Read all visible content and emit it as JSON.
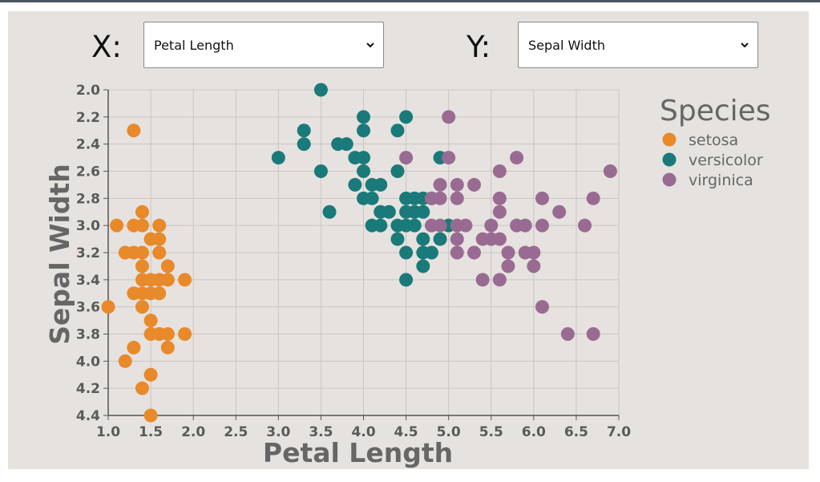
{
  "controls": {
    "x_label": "X:",
    "x_selected": "Petal Length",
    "y_label": "Y:",
    "y_selected": "Sepal Width"
  },
  "colors": {
    "setosa": "#e8892a",
    "versicolor": "#1a7a7a",
    "virginica": "#9a6b92",
    "grid": "#c9c6c3",
    "frame": "#a8a5a2",
    "text": "#666666"
  },
  "chart_data": {
    "type": "scatter",
    "title": "",
    "xlabel": "Petal Length",
    "ylabel": "Sepal Width",
    "xlim": [
      1.0,
      7.0
    ],
    "ylim": [
      2.0,
      4.4
    ],
    "y_inverted": true,
    "x_ticks": [
      "1.0",
      "1.5",
      "2.0",
      "2.5",
      "3.0",
      "3.5",
      "4.0",
      "4.5",
      "5.0",
      "5.5",
      "6.0",
      "6.5",
      "7.0"
    ],
    "y_ticks": [
      "2.0",
      "2.2",
      "2.4",
      "2.6",
      "2.8",
      "3.0",
      "3.2",
      "3.4",
      "3.6",
      "3.8",
      "4.0",
      "4.2",
      "4.4"
    ],
    "grid": true,
    "legend": {
      "title": "Species",
      "position": "right"
    },
    "series": [
      {
        "name": "setosa",
        "points": [
          [
            1.3,
            2.3
          ],
          [
            1.1,
            3.0
          ],
          [
            1.3,
            3.0
          ],
          [
            1.4,
            3.0
          ],
          [
            1.6,
            3.0
          ],
          [
            1.4,
            2.9
          ],
          [
            1.2,
            3.2
          ],
          [
            1.3,
            3.2
          ],
          [
            1.4,
            3.2
          ],
          [
            1.6,
            3.2
          ],
          [
            1.5,
            3.1
          ],
          [
            1.6,
            3.1
          ],
          [
            1.4,
            3.3
          ],
          [
            1.7,
            3.3
          ],
          [
            1.4,
            3.4
          ],
          [
            1.5,
            3.4
          ],
          [
            1.6,
            3.4
          ],
          [
            1.7,
            3.4
          ],
          [
            1.9,
            3.4
          ],
          [
            1.3,
            3.5
          ],
          [
            1.4,
            3.5
          ],
          [
            1.5,
            3.5
          ],
          [
            1.6,
            3.5
          ],
          [
            1.0,
            3.6
          ],
          [
            1.4,
            3.6
          ],
          [
            1.5,
            3.7
          ],
          [
            1.5,
            3.8
          ],
          [
            1.6,
            3.8
          ],
          [
            1.7,
            3.8
          ],
          [
            1.9,
            3.8
          ],
          [
            1.3,
            3.9
          ],
          [
            1.7,
            3.9
          ],
          [
            1.2,
            4.0
          ],
          [
            1.5,
            4.1
          ],
          [
            1.4,
            4.2
          ],
          [
            1.5,
            4.4
          ]
        ]
      },
      {
        "name": "versicolor",
        "points": [
          [
            3.5,
            2.0
          ],
          [
            4.0,
            2.2
          ],
          [
            4.5,
            2.2
          ],
          [
            3.3,
            2.3
          ],
          [
            4.0,
            2.3
          ],
          [
            4.4,
            2.3
          ],
          [
            3.3,
            2.4
          ],
          [
            3.7,
            2.4
          ],
          [
            3.8,
            2.4
          ],
          [
            3.0,
            2.5
          ],
          [
            3.9,
            2.5
          ],
          [
            4.0,
            2.5
          ],
          [
            4.9,
            2.5
          ],
          [
            3.5,
            2.6
          ],
          [
            4.0,
            2.6
          ],
          [
            4.4,
            2.6
          ],
          [
            3.9,
            2.7
          ],
          [
            4.1,
            2.7
          ],
          [
            4.2,
            2.7
          ],
          [
            4.0,
            2.8
          ],
          [
            4.1,
            2.8
          ],
          [
            4.5,
            2.8
          ],
          [
            4.6,
            2.8
          ],
          [
            4.7,
            2.8
          ],
          [
            4.8,
            2.8
          ],
          [
            3.6,
            2.9
          ],
          [
            4.2,
            2.9
          ],
          [
            4.3,
            2.9
          ],
          [
            4.5,
            2.9
          ],
          [
            4.6,
            2.9
          ],
          [
            4.7,
            2.9
          ],
          [
            4.1,
            3.0
          ],
          [
            4.2,
            3.0
          ],
          [
            4.4,
            3.0
          ],
          [
            4.5,
            3.0
          ],
          [
            4.6,
            3.0
          ],
          [
            5.0,
            3.0
          ],
          [
            4.4,
            3.1
          ],
          [
            4.7,
            3.1
          ],
          [
            4.9,
            3.1
          ],
          [
            4.5,
            3.2
          ],
          [
            4.7,
            3.2
          ],
          [
            4.8,
            3.2
          ],
          [
            4.7,
            3.3
          ],
          [
            4.5,
            3.4
          ]
        ]
      },
      {
        "name": "virginica",
        "points": [
          [
            5.0,
            2.2
          ],
          [
            4.5,
            2.5
          ],
          [
            5.0,
            2.5
          ],
          [
            5.8,
            2.5
          ],
          [
            5.6,
            2.6
          ],
          [
            6.9,
            2.6
          ],
          [
            4.9,
            2.7
          ],
          [
            5.1,
            2.7
          ],
          [
            5.3,
            2.7
          ],
          [
            4.8,
            2.8
          ],
          [
            4.9,
            2.8
          ],
          [
            5.1,
            2.8
          ],
          [
            5.6,
            2.8
          ],
          [
            6.1,
            2.8
          ],
          [
            6.7,
            2.8
          ],
          [
            5.6,
            2.9
          ],
          [
            6.3,
            2.9
          ],
          [
            4.8,
            3.0
          ],
          [
            4.9,
            3.0
          ],
          [
            5.1,
            3.0
          ],
          [
            5.2,
            3.0
          ],
          [
            5.5,
            3.0
          ],
          [
            5.8,
            3.0
          ],
          [
            5.9,
            3.0
          ],
          [
            6.1,
            3.0
          ],
          [
            6.6,
            3.0
          ],
          [
            5.1,
            3.1
          ],
          [
            5.4,
            3.1
          ],
          [
            5.5,
            3.1
          ],
          [
            5.6,
            3.1
          ],
          [
            5.1,
            3.2
          ],
          [
            5.3,
            3.2
          ],
          [
            5.7,
            3.2
          ],
          [
            5.9,
            3.2
          ],
          [
            6.0,
            3.2
          ],
          [
            5.7,
            3.3
          ],
          [
            6.0,
            3.3
          ],
          [
            5.4,
            3.4
          ],
          [
            5.6,
            3.4
          ],
          [
            6.1,
            3.6
          ],
          [
            6.4,
            3.8
          ],
          [
            6.7,
            3.8
          ]
        ]
      }
    ]
  }
}
